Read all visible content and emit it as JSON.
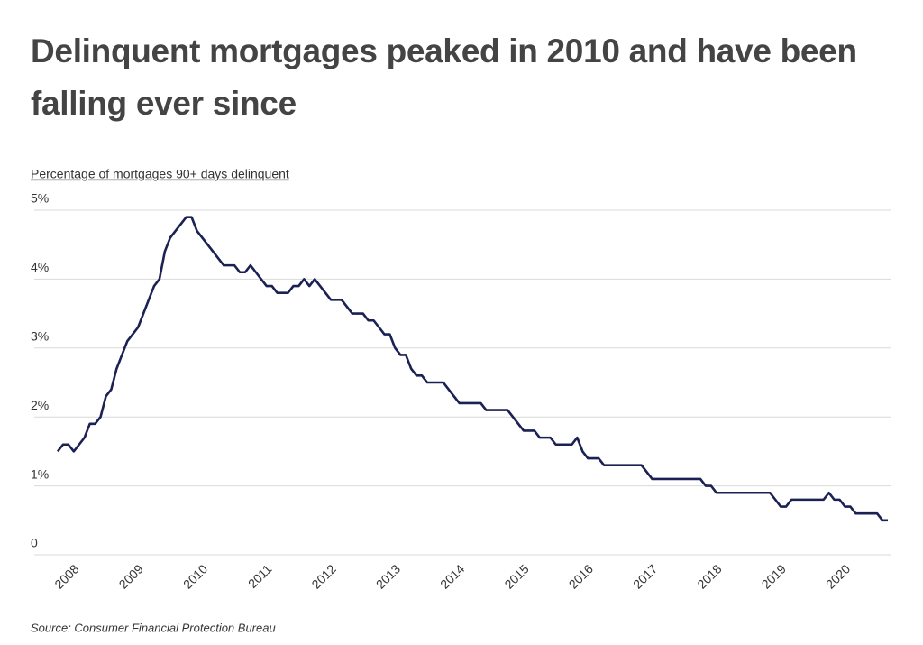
{
  "chart_data": {
    "type": "line",
    "title": "Delinquent mortgages peaked in 2010 and have been falling ever since",
    "y_label": "Percentage of mortgages 90+ days delinquent",
    "source": "Source:  Consumer Financial Protection Bureau",
    "categories": [
      null,
      null,
      "2008",
      null,
      null,
      null,
      null,
      null,
      null,
      null,
      null,
      null,
      null,
      null,
      "2009",
      null,
      null,
      null,
      null,
      null,
      null,
      null,
      null,
      null,
      null,
      null,
      "2010",
      null,
      null,
      null,
      null,
      null,
      null,
      null,
      null,
      null,
      null,
      null,
      "2011",
      null,
      null,
      null,
      null,
      null,
      null,
      null,
      null,
      null,
      null,
      null,
      "2012",
      null,
      null,
      null,
      null,
      null,
      null,
      null,
      null,
      null,
      null,
      null,
      "2013",
      null,
      null,
      null,
      null,
      null,
      null,
      null,
      null,
      null,
      null,
      null,
      "2014",
      null,
      null,
      null,
      null,
      null,
      null,
      null,
      null,
      null,
      null,
      null,
      "2015",
      null,
      null,
      null,
      null,
      null,
      null,
      null,
      null,
      null,
      null,
      null,
      "2016",
      null,
      null,
      null,
      null,
      null,
      null,
      null,
      null,
      null,
      null,
      null,
      "2017",
      null,
      null,
      null,
      null,
      null,
      null,
      null,
      null,
      null,
      null,
      null,
      "2018",
      null,
      null,
      null,
      null,
      null,
      null,
      null,
      null,
      null,
      null,
      null,
      "2019",
      null,
      null,
      null,
      null,
      null,
      null,
      null,
      null,
      null,
      null,
      null,
      "2020",
      null,
      null,
      null,
      null,
      null,
      null,
      null,
      null,
      null
    ],
    "values": [
      1.5,
      1.6,
      1.6,
      1.5,
      1.6,
      1.7,
      1.9,
      1.9,
      2.0,
      2.3,
      2.4,
      2.7,
      2.9,
      3.1,
      3.2,
      3.3,
      3.5,
      3.7,
      3.9,
      4.0,
      4.4,
      4.6,
      4.7,
      4.8,
      4.9,
      4.9,
      4.7,
      4.6,
      4.5,
      4.4,
      4.3,
      4.2,
      4.2,
      4.2,
      4.1,
      4.1,
      4.2,
      4.1,
      4.0,
      3.9,
      3.9,
      3.8,
      3.8,
      3.8,
      3.9,
      3.9,
      4.0,
      3.9,
      4.0,
      3.9,
      3.8,
      3.7,
      3.7,
      3.7,
      3.6,
      3.5,
      3.5,
      3.5,
      3.4,
      3.4,
      3.3,
      3.2,
      3.2,
      3.0,
      2.9,
      2.9,
      2.7,
      2.6,
      2.6,
      2.5,
      2.5,
      2.5,
      2.5,
      2.4,
      2.3,
      2.2,
      2.2,
      2.2,
      2.2,
      2.2,
      2.1,
      2.1,
      2.1,
      2.1,
      2.1,
      2.0,
      1.9,
      1.8,
      1.8,
      1.8,
      1.7,
      1.7,
      1.7,
      1.6,
      1.6,
      1.6,
      1.6,
      1.7,
      1.5,
      1.4,
      1.4,
      1.4,
      1.3,
      1.3,
      1.3,
      1.3,
      1.3,
      1.3,
      1.3,
      1.3,
      1.2,
      1.1,
      1.1,
      1.1,
      1.1,
      1.1,
      1.1,
      1.1,
      1.1,
      1.1,
      1.1,
      1.0,
      1.0,
      0.9,
      0.9,
      0.9,
      0.9,
      0.9,
      0.9,
      0.9,
      0.9,
      0.9,
      0.9,
      0.9,
      0.8,
      0.7,
      0.7,
      0.8,
      0.8,
      0.8,
      0.8,
      0.8,
      0.8,
      0.8,
      0.9,
      0.8,
      0.8,
      0.7,
      0.7,
      0.6,
      0.6,
      0.6,
      0.6,
      0.6,
      0.5,
      0.5
    ],
    "color": "#1b2152",
    "ylim": [
      0,
      5
    ],
    "yticks": [
      0,
      {
        "value": 1,
        "label": "1%"
      },
      {
        "value": 2,
        "label": "2%"
      },
      {
        "value": 3,
        "label": "3%"
      },
      {
        "value": 4,
        "label": "4%"
      },
      {
        "value": 5,
        "label": "5%"
      }
    ],
    "grid": true
  }
}
